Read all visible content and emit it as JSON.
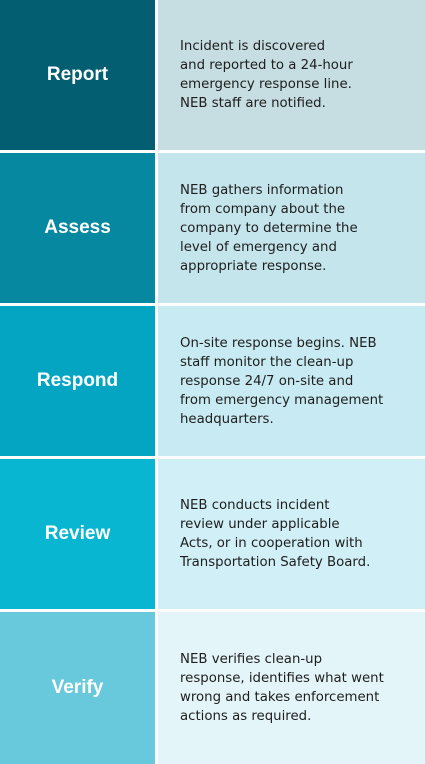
{
  "steps": [
    {
      "label": "Report",
      "description": "Incident is discovered\nand reported to a 24-hour\nemergency response line.\nNEB staff are notified.",
      "label_color": "#035e71",
      "desc_color": "#c6dde2"
    },
    {
      "label": "Assess",
      "description": "NEB gathers information\nfrom company about the\ncompany to determine the\nlevel of emergency and\nappropriate response.",
      "label_color": "#0688a1",
      "desc_color": "#c5e5ec"
    },
    {
      "label": "Respond",
      "description": "On-site response begins. NEB\nstaff monitor the clean-up\nresponse 24/7 on-site and\nfrom emergency management\nheadquarters.",
      "label_color": "#04a5c2",
      "desc_color": "#c8eaf2"
    },
    {
      "label": "Review",
      "description": "NEB conducts incident\nreview under applicable\nActs, or in cooperation with\nTransportation Safety Board.",
      "label_color": "#08b6d1",
      "desc_color": "#d0eff6"
    },
    {
      "label": "Verify",
      "description": "NEB verifies clean-up\nresponse, identifies what went\nwrong and takes enforcement\nactions as required.",
      "label_color": "#67c9db",
      "desc_color": "#e3f5f9"
    }
  ]
}
